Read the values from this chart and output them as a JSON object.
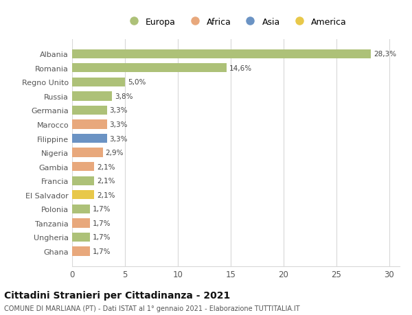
{
  "categories": [
    "Albania",
    "Romania",
    "Regno Unito",
    "Russia",
    "Germania",
    "Marocco",
    "Filippine",
    "Nigeria",
    "Gambia",
    "Francia",
    "El Salvador",
    "Polonia",
    "Tanzania",
    "Ungheria",
    "Ghana"
  ],
  "values": [
    28.3,
    14.6,
    5.0,
    3.8,
    3.3,
    3.3,
    3.3,
    2.9,
    2.1,
    2.1,
    2.1,
    1.7,
    1.7,
    1.7,
    1.7
  ],
  "labels": [
    "28,3%",
    "14,6%",
    "5,0%",
    "3,8%",
    "3,3%",
    "3,3%",
    "3,3%",
    "2,9%",
    "2,1%",
    "2,1%",
    "2,1%",
    "1,7%",
    "1,7%",
    "1,7%",
    "1,7%"
  ],
  "bar_colors": [
    "#adc178",
    "#adc178",
    "#adc178",
    "#adc178",
    "#adc178",
    "#e8a87c",
    "#6b93c4",
    "#e8a87c",
    "#e8a87c",
    "#adc178",
    "#e8c84a",
    "#adc178",
    "#e8a87c",
    "#adc178",
    "#e8a87c"
  ],
  "legend_labels": [
    "Europa",
    "Africa",
    "Asia",
    "America"
  ],
  "legend_colors": [
    "#adc178",
    "#e8a87c",
    "#6b93c4",
    "#e8c84a"
  ],
  "title": "Cittadini Stranieri per Cittadinanza - 2021",
  "subtitle": "COMUNE DI MARLIANA (PT) - Dati ISTAT al 1° gennaio 2021 - Elaborazione TUTTITALIA.IT",
  "xlim": [
    0,
    31
  ],
  "xticks": [
    0,
    5,
    10,
    15,
    20,
    25,
    30
  ],
  "background_color": "#ffffff",
  "grid_color": "#d8d8d8"
}
